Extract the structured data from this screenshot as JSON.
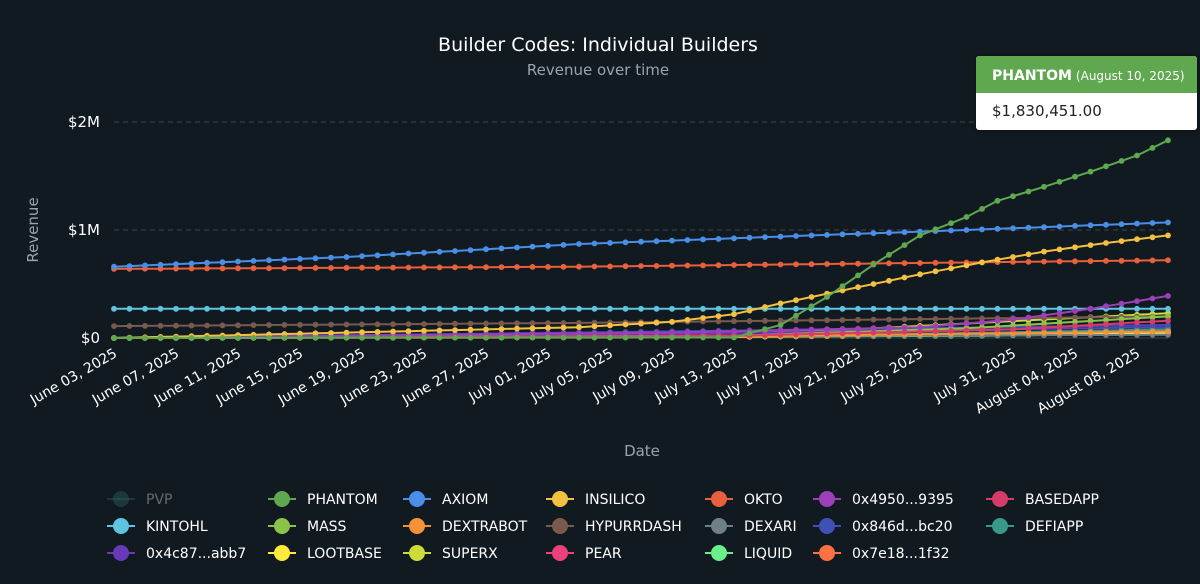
{
  "chart_data": {
    "type": "line",
    "title": "Builder Codes: Individual Builders",
    "subtitle": "Revenue over time",
    "xlabel": "Date",
    "ylabel": "Revenue",
    "ylim": [
      0,
      2000000
    ],
    "yticks": [
      {
        "value": 0,
        "label": "$0"
      },
      {
        "value": 1000000,
        "label": "$1M"
      },
      {
        "value": 2000000,
        "label": "$2M"
      }
    ],
    "start_date": "2025-06-03",
    "end_date": "2025-08-10",
    "xticks": [
      {
        "day": 0,
        "label": "June 03, 2025"
      },
      {
        "day": 4,
        "label": "June 07, 2025"
      },
      {
        "day": 8,
        "label": "June 11, 2025"
      },
      {
        "day": 12,
        "label": "June 15, 2025"
      },
      {
        "day": 16,
        "label": "June 19, 2025"
      },
      {
        "day": 20,
        "label": "June 23, 2025"
      },
      {
        "day": 24,
        "label": "June 27, 2025"
      },
      {
        "day": 28,
        "label": "July 01, 2025"
      },
      {
        "day": 32,
        "label": "July 05, 2025"
      },
      {
        "day": 36,
        "label": "July 09, 2025"
      },
      {
        "day": 40,
        "label": "July 13, 2025"
      },
      {
        "day": 44,
        "label": "July 17, 2025"
      },
      {
        "day": 48,
        "label": "July 21, 2025"
      },
      {
        "day": 52,
        "label": "July 25, 2025"
      },
      {
        "day": 58,
        "label": "July 31, 2025"
      },
      {
        "day": 62,
        "label": "August 04, 2025"
      },
      {
        "day": 66,
        "label": "August 08, 2025"
      }
    ],
    "series": [
      {
        "name": "PVP",
        "color": "#2f5d5a",
        "hidden": true,
        "points": [
          [
            0,
            0
          ],
          [
            68,
            0
          ]
        ]
      },
      {
        "name": "PHANTOM",
        "color": "#5fa84f",
        "points": [
          [
            0,
            0
          ],
          [
            40,
            5000
          ],
          [
            43,
            120000
          ],
          [
            46,
            380000
          ],
          [
            49,
            680000
          ],
          [
            52,
            950000
          ],
          [
            55,
            1120000
          ],
          [
            57,
            1270000
          ],
          [
            60,
            1400000
          ],
          [
            63,
            1540000
          ],
          [
            66,
            1690000
          ],
          [
            68,
            1830451
          ]
        ]
      },
      {
        "name": "AXIOM",
        "color": "#4a8fe7",
        "points": [
          [
            0,
            660000
          ],
          [
            15,
            750000
          ],
          [
            30,
            870000
          ],
          [
            45,
            950000
          ],
          [
            55,
            1000000
          ],
          [
            68,
            1070000
          ]
        ]
      },
      {
        "name": "INSILICO",
        "color": "#f4c042",
        "points": [
          [
            0,
            0
          ],
          [
            24,
            80000
          ],
          [
            30,
            100000
          ],
          [
            36,
            150000
          ],
          [
            40,
            220000
          ],
          [
            43,
            320000
          ],
          [
            47,
            440000
          ],
          [
            52,
            590000
          ],
          [
            56,
            700000
          ],
          [
            60,
            800000
          ],
          [
            64,
            880000
          ],
          [
            68,
            950000
          ]
        ]
      },
      {
        "name": "OKTO",
        "color": "#e8603c",
        "points": [
          [
            0,
            640000
          ],
          [
            30,
            660000
          ],
          [
            68,
            720000
          ]
        ]
      },
      {
        "name": "0x4950...9395",
        "color": "#9c3fb8",
        "points": [
          [
            0,
            0
          ],
          [
            36,
            50000
          ],
          [
            52,
            100000
          ],
          [
            58,
            170000
          ],
          [
            63,
            270000
          ],
          [
            68,
            390000
          ]
        ]
      },
      {
        "name": "BASEDAPP",
        "color": "#d63c6a",
        "points": [
          [
            0,
            0
          ],
          [
            40,
            20000
          ],
          [
            58,
            80000
          ],
          [
            68,
            160000
          ]
        ]
      },
      {
        "name": "KINTOHL",
        "color": "#5ec4e0",
        "points": [
          [
            0,
            270000
          ],
          [
            68,
            270000
          ]
        ]
      },
      {
        "name": "MASS",
        "color": "#8bc34a",
        "points": [
          [
            0,
            0
          ],
          [
            40,
            20000
          ],
          [
            55,
            90000
          ],
          [
            68,
            200000
          ]
        ]
      },
      {
        "name": "DEXTRABOT",
        "color": "#f59235",
        "points": [
          [
            0,
            0
          ],
          [
            40,
            15000
          ],
          [
            68,
            60000
          ]
        ]
      },
      {
        "name": "HYPURRDASH",
        "color": "#7a5a4e",
        "points": [
          [
            0,
            110000
          ],
          [
            30,
            140000
          ],
          [
            68,
            200000
          ]
        ]
      },
      {
        "name": "DEXARI",
        "color": "#6e7f87",
        "points": [
          [
            0,
            0
          ],
          [
            68,
            30000
          ]
        ]
      },
      {
        "name": "0x846d...bc20",
        "color": "#3f51b5",
        "points": [
          [
            0,
            0
          ],
          [
            30,
            50000
          ],
          [
            68,
            120000
          ]
        ]
      },
      {
        "name": "DEFIAPP",
        "color": "#3a9a8a",
        "points": [
          [
            0,
            0
          ],
          [
            45,
            20000
          ],
          [
            68,
            80000
          ]
        ]
      },
      {
        "name": "0x4c87...abb7",
        "color": "#673ab7",
        "points": [
          [
            0,
            0
          ],
          [
            36,
            40000
          ],
          [
            68,
            100000
          ]
        ]
      },
      {
        "name": "LOOTBASE",
        "color": "#ffeb3b",
        "points": [
          [
            0,
            0
          ],
          [
            40,
            10000
          ],
          [
            68,
            50000
          ]
        ]
      },
      {
        "name": "SUPERX",
        "color": "#cddc39",
        "points": [
          [
            0,
            0
          ],
          [
            20,
            20000
          ],
          [
            45,
            60000
          ],
          [
            68,
            230000
          ]
        ]
      },
      {
        "name": "PEAR",
        "color": "#ec407a",
        "points": [
          [
            0,
            0
          ],
          [
            50,
            30000
          ],
          [
            68,
            70000
          ]
        ]
      },
      {
        "name": "LIQUID",
        "color": "#69f08a",
        "points": [
          [
            0,
            0
          ],
          [
            55,
            20000
          ],
          [
            68,
            40000
          ]
        ]
      },
      {
        "name": "0x7e18...1f32",
        "color": "#ff7043",
        "points": [
          [
            0,
            0
          ],
          [
            45,
            15000
          ],
          [
            68,
            50000
          ]
        ]
      }
    ]
  },
  "tooltip": {
    "name": "PHANTOM",
    "date": "(August 10, 2025)",
    "value": "$1,830,451.00",
    "color": "#5fa84f"
  }
}
